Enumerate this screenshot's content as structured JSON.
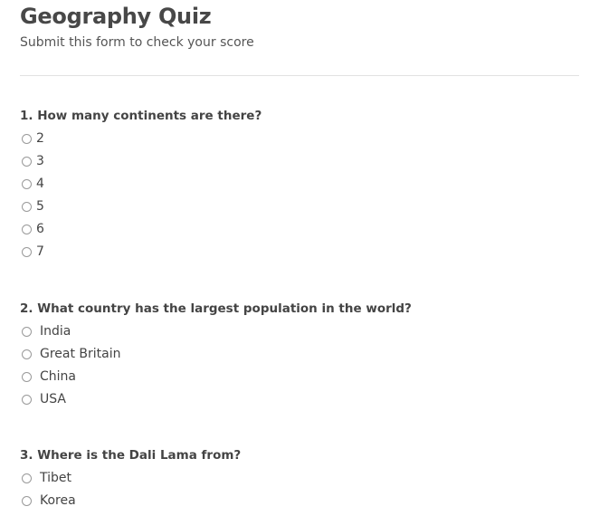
{
  "header": {
    "title": "Geography Quiz",
    "subtitle": "Submit this form to check your score"
  },
  "questions": [
    {
      "text": "1. How many continents are there?",
      "options": [
        "2",
        "3",
        "4",
        "5",
        "6",
        "7"
      ]
    },
    {
      "text": "2. What country has the largest population in the world?",
      "options": [
        "India",
        "Great Britain",
        "China",
        "USA"
      ]
    },
    {
      "text": "3. Where is the Dali Lama from?",
      "options": [
        "Tibet",
        "Korea"
      ]
    }
  ]
}
